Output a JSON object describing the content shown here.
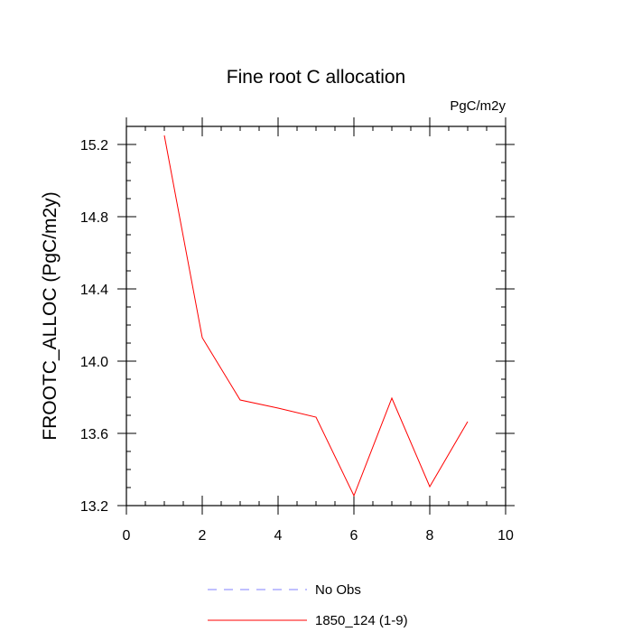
{
  "chart_data": {
    "type": "line",
    "title": "Fine root C allocation",
    "units_label": "PgC/m2y",
    "xlabel": "",
    "ylabel": "FROOTC_ALLOC  (PgC/m2y)",
    "xlim": [
      0,
      10
    ],
    "ylim": [
      13.2,
      15.3
    ],
    "x_ticks": [
      "0",
      "2",
      "4",
      "6",
      "8",
      "10"
    ],
    "y_ticks": [
      "13.2",
      "13.6",
      "14.0",
      "14.4",
      "14.8",
      "15.2"
    ],
    "grid": false,
    "legend_position": "bottom-center",
    "series": [
      {
        "name": "1850_124 (1-9)",
        "color": "#ff0000",
        "x": [
          1,
          2,
          3,
          4,
          5,
          6,
          7,
          8,
          9
        ],
        "y": [
          15.25,
          14.13,
          13.785,
          13.74,
          13.69,
          13.255,
          13.795,
          13.305,
          13.665
        ]
      }
    ],
    "legend": [
      {
        "label": "No Obs",
        "color": "#8080ff",
        "style": "dashed"
      },
      {
        "label": "1850_124 (1-9)",
        "color": "#ff0000",
        "style": "solid"
      }
    ]
  }
}
